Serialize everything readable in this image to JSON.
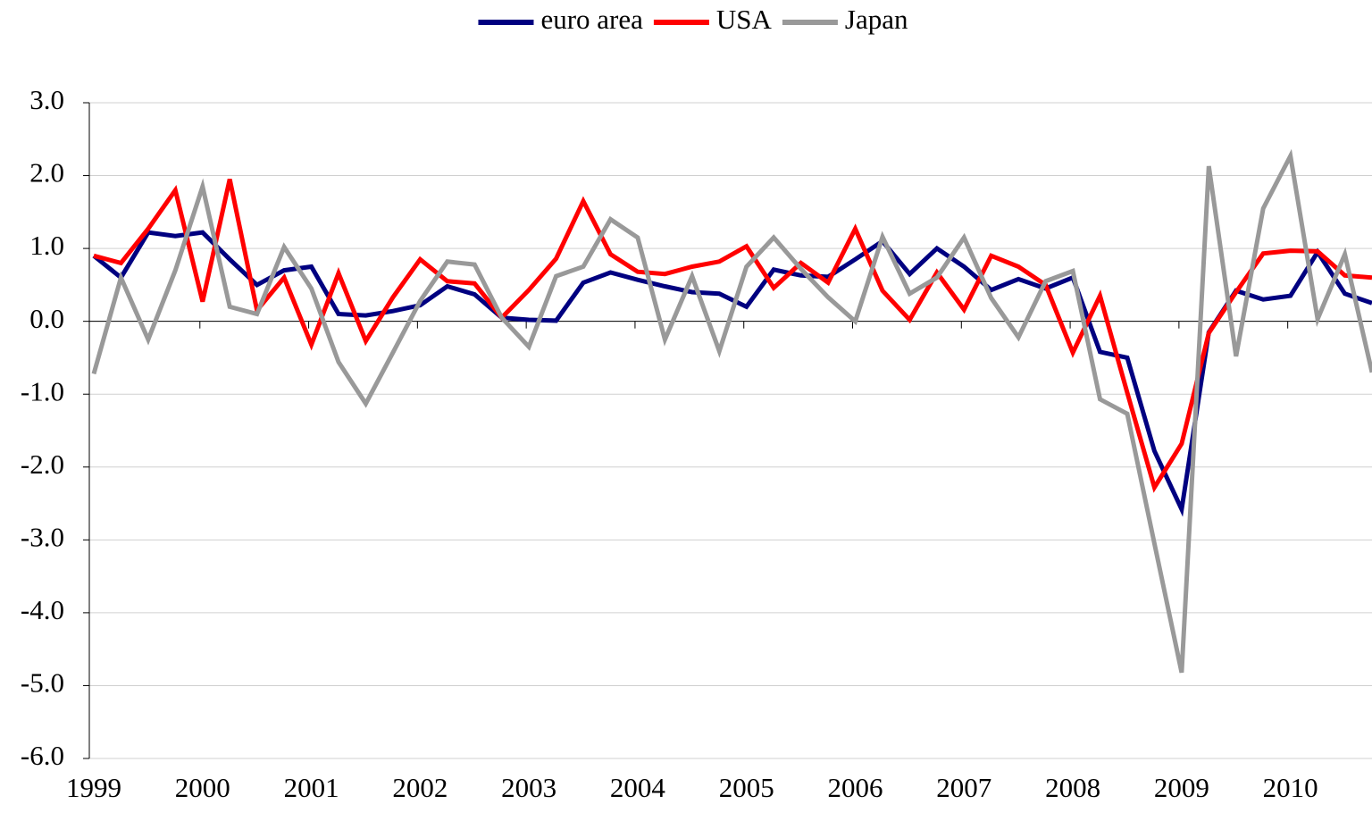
{
  "chart_data": {
    "type": "line",
    "categories": [
      "1999",
      null,
      null,
      null,
      "2000",
      null,
      null,
      null,
      "2001",
      null,
      null,
      null,
      "2002",
      null,
      null,
      null,
      "2003",
      null,
      null,
      null,
      "2004",
      null,
      null,
      null,
      "2005",
      null,
      null,
      null,
      "2006",
      null,
      null,
      null,
      "2007",
      null,
      null,
      null,
      "2008",
      null,
      null,
      null,
      "2009",
      null,
      null,
      null,
      "2010",
      null,
      null,
      null
    ],
    "series": [
      {
        "name": "euro area",
        "color": "#000080",
        "values": [
          0.9,
          0.6,
          1.22,
          1.17,
          1.22,
          0.85,
          0.5,
          0.7,
          0.75,
          0.1,
          0.08,
          0.14,
          0.22,
          0.48,
          0.37,
          0.05,
          0.02,
          0.01,
          0.53,
          0.67,
          0.57,
          0.48,
          0.4,
          0.38,
          0.2,
          0.71,
          0.63,
          0.61,
          0.85,
          1.1,
          0.65,
          1.0,
          0.75,
          0.43,
          0.58,
          0.45,
          0.6,
          -0.42,
          -0.5,
          -1.78,
          -2.58,
          -0.15,
          0.42,
          0.3,
          0.35,
          0.95,
          0.38,
          0.25
        ]
      },
      {
        "name": "USA",
        "color": "#ff0000",
        "values": [
          0.9,
          0.8,
          1.27,
          1.8,
          0.27,
          1.95,
          0.15,
          0.6,
          -0.32,
          0.66,
          -0.27,
          0.33,
          0.85,
          0.55,
          0.52,
          0.05,
          0.43,
          0.86,
          1.65,
          0.92,
          0.68,
          0.65,
          0.75,
          0.82,
          1.03,
          0.46,
          0.8,
          0.53,
          1.27,
          0.42,
          0.02,
          0.67,
          0.16,
          0.9,
          0.75,
          0.5,
          -0.43,
          0.35,
          -0.98,
          -2.28,
          -1.68,
          -0.16,
          0.4,
          0.93,
          0.97,
          0.96,
          0.63,
          0.6
        ]
      },
      {
        "name": "Japan",
        "color": "#999999",
        "values": [
          -0.72,
          0.6,
          -0.25,
          0.7,
          1.85,
          0.2,
          0.1,
          1.02,
          0.45,
          -0.56,
          -1.13,
          -0.43,
          0.28,
          0.82,
          0.78,
          0.05,
          -0.35,
          0.62,
          0.75,
          1.4,
          1.15,
          -0.25,
          0.62,
          -0.41,
          0.75,
          1.15,
          0.72,
          0.33,
          0.0,
          1.16,
          0.38,
          0.6,
          1.15,
          0.32,
          -0.22,
          0.55,
          0.69,
          -1.07,
          -1.27,
          -3.05,
          -4.82,
          2.13,
          -0.48,
          1.55,
          2.27,
          0.03,
          0.92,
          -0.7
        ]
      }
    ],
    "ylim": [
      -6,
      3
    ],
    "yticks": [
      {
        "value": -6,
        "label": "-6.0"
      },
      {
        "value": -5,
        "label": "-5.0"
      },
      {
        "value": -4,
        "label": "-4.0"
      },
      {
        "value": -3,
        "label": "-3.0"
      },
      {
        "value": -2,
        "label": "-2.0"
      },
      {
        "value": -1,
        "label": "-1.0"
      },
      {
        "value": 0,
        "label": "0.0"
      },
      {
        "value": 1,
        "label": "1.0"
      },
      {
        "value": 2,
        "label": "2.0"
      },
      {
        "value": 3,
        "label": "3.0"
      }
    ],
    "grid": true,
    "legend": "top"
  }
}
